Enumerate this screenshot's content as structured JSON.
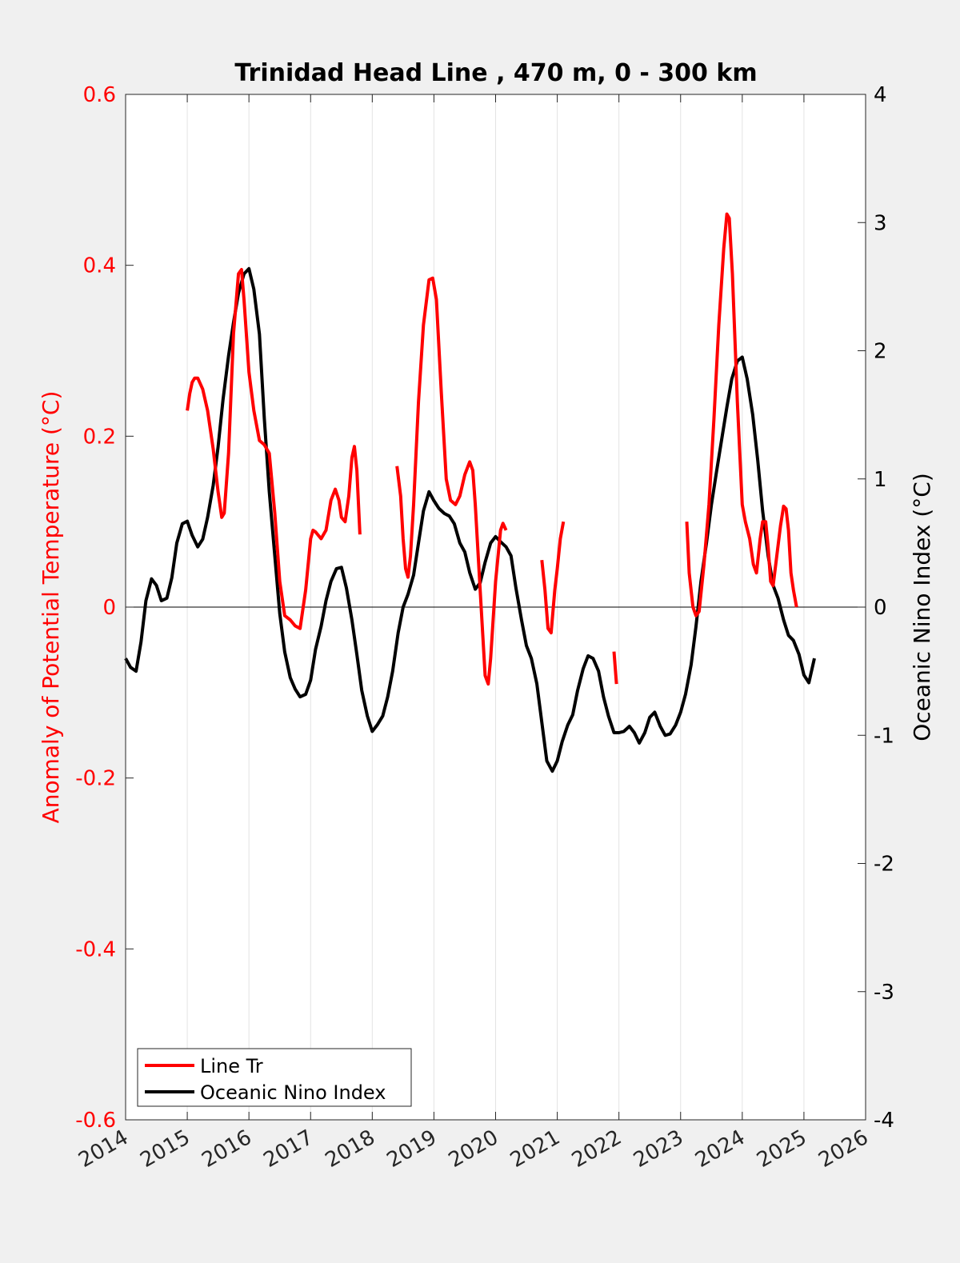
{
  "chart_data": {
    "type": "line",
    "title": "Trinidad Head Line , 470 m, 0 - 300 km",
    "xlabel": "",
    "ylabel_left": "Anomaly of Potential Temperature (°C)",
    "ylabel_right": "Oceanic Nino Index (°C)",
    "xlim": [
      2014,
      2026
    ],
    "ylim_left": [
      -0.6,
      0.6
    ],
    "ylim_right": [
      -4,
      4
    ],
    "x_ticks": [
      "2014",
      "2015",
      "2016",
      "2017",
      "2018",
      "2019",
      "2020",
      "2021",
      "2022",
      "2023",
      "2024",
      "2025",
      "2026"
    ],
    "y_left_ticks": [
      "-0.6",
      "-0.4",
      "-0.2",
      "0",
      "0.2",
      "0.4",
      "0.6"
    ],
    "y_right_ticks": [
      "-4",
      "-3",
      "-2",
      "-1",
      "0",
      "1",
      "2",
      "3",
      "4"
    ],
    "grid": "vertical",
    "zero_line": true,
    "legend_position": "bottom-left",
    "colors": {
      "line_tr": "#ff0000",
      "oni": "#000000",
      "left_axis": "#ff0000",
      "right_axis": "#000000"
    },
    "series": [
      {
        "name": "Line Tr",
        "axis": "left",
        "color": "#ff0000",
        "segments": [
          [
            [
              2015.0,
              0.23
            ],
            [
              2015.04,
              0.25
            ],
            [
              2015.08,
              0.263
            ],
            [
              2015.12,
              0.268
            ],
            [
              2015.17,
              0.268
            ],
            [
              2015.25,
              0.255
            ],
            [
              2015.33,
              0.23
            ],
            [
              2015.42,
              0.185
            ],
            [
              2015.5,
              0.135
            ],
            [
              2015.56,
              0.105
            ],
            [
              2015.6,
              0.11
            ],
            [
              2015.67,
              0.18
            ],
            [
              2015.75,
              0.32
            ],
            [
              2015.83,
              0.39
            ],
            [
              2015.88,
              0.395
            ],
            [
              2015.92,
              0.36
            ],
            [
              2016.0,
              0.275
            ],
            [
              2016.08,
              0.23
            ],
            [
              2016.17,
              0.195
            ],
            [
              2016.25,
              0.19
            ],
            [
              2016.33,
              0.18
            ],
            [
              2016.42,
              0.11
            ],
            [
              2016.5,
              0.03
            ],
            [
              2016.58,
              -0.01
            ],
            [
              2016.67,
              -0.015
            ],
            [
              2016.75,
              -0.022
            ],
            [
              2016.83,
              -0.025
            ],
            [
              2016.92,
              0.02
            ],
            [
              2017.0,
              0.08
            ],
            [
              2017.04,
              0.09
            ],
            [
              2017.08,
              0.088
            ],
            [
              2017.17,
              0.08
            ],
            [
              2017.25,
              0.09
            ],
            [
              2017.33,
              0.125
            ],
            [
              2017.4,
              0.138
            ],
            [
              2017.46,
              0.125
            ],
            [
              2017.5,
              0.105
            ],
            [
              2017.56,
              0.1
            ],
            [
              2017.62,
              0.13
            ],
            [
              2017.67,
              0.175
            ],
            [
              2017.71,
              0.188
            ],
            [
              2017.75,
              0.16
            ],
            [
              2017.8,
              0.085
            ]
          ],
          [
            [
              2018.4,
              0.165
            ],
            [
              2018.46,
              0.13
            ],
            [
              2018.5,
              0.08
            ],
            [
              2018.54,
              0.045
            ],
            [
              2018.58,
              0.035
            ],
            [
              2018.62,
              0.06
            ],
            [
              2018.67,
              0.12
            ],
            [
              2018.75,
              0.24
            ],
            [
              2018.83,
              0.33
            ],
            [
              2018.92,
              0.383
            ],
            [
              2018.98,
              0.385
            ],
            [
              2019.04,
              0.36
            ],
            [
              2019.12,
              0.25
            ],
            [
              2019.2,
              0.15
            ],
            [
              2019.27,
              0.125
            ],
            [
              2019.35,
              0.12
            ],
            [
              2019.42,
              0.13
            ],
            [
              2019.5,
              0.155
            ],
            [
              2019.58,
              0.17
            ],
            [
              2019.63,
              0.16
            ],
            [
              2019.67,
              0.12
            ],
            [
              2019.75,
              0.02
            ],
            [
              2019.83,
              -0.08
            ],
            [
              2019.88,
              -0.09
            ],
            [
              2019.92,
              -0.06
            ],
            [
              2020.0,
              0.03
            ],
            [
              2020.08,
              0.09
            ],
            [
              2020.12,
              0.098
            ],
            [
              2020.17,
              0.09
            ]
          ],
          [
            [
              2020.75,
              0.055
            ],
            [
              2020.8,
              0.02
            ],
            [
              2020.85,
              -0.025
            ],
            [
              2020.9,
              -0.03
            ],
            [
              2020.96,
              0.02
            ],
            [
              2021.0,
              0.045
            ],
            [
              2021.05,
              0.08
            ],
            [
              2021.1,
              0.1
            ]
          ],
          [
            [
              2021.92,
              -0.052
            ],
            [
              2021.96,
              -0.09
            ]
          ],
          [
            [
              2023.1,
              0.1
            ],
            [
              2023.14,
              0.04
            ],
            [
              2023.2,
              0.0
            ],
            [
              2023.25,
              -0.01
            ],
            [
              2023.3,
              -0.005
            ],
            [
              2023.38,
              0.05
            ],
            [
              2023.46,
              0.12
            ],
            [
              2023.54,
              0.22
            ],
            [
              2023.62,
              0.33
            ],
            [
              2023.7,
              0.42
            ],
            [
              2023.75,
              0.46
            ],
            [
              2023.79,
              0.455
            ],
            [
              2023.84,
              0.39
            ],
            [
              2023.92,
              0.24
            ],
            [
              2024.0,
              0.12
            ],
            [
              2024.05,
              0.1
            ],
            [
              2024.12,
              0.08
            ],
            [
              2024.18,
              0.05
            ],
            [
              2024.23,
              0.04
            ],
            [
              2024.29,
              0.08
            ],
            [
              2024.33,
              0.1
            ],
            [
              2024.38,
              0.1
            ],
            [
              2024.42,
              0.07
            ],
            [
              2024.46,
              0.03
            ],
            [
              2024.5,
              0.025
            ],
            [
              2024.56,
              0.06
            ],
            [
              2024.62,
              0.095
            ],
            [
              2024.67,
              0.118
            ],
            [
              2024.71,
              0.115
            ],
            [
              2024.75,
              0.09
            ],
            [
              2024.79,
              0.04
            ],
            [
              2024.83,
              0.02
            ],
            [
              2024.88,
              0.0
            ]
          ]
        ]
      },
      {
        "name": "Oceanic Nino Index",
        "axis": "right",
        "color": "#000000",
        "segments": [
          [
            [
              2014.0,
              -0.4
            ],
            [
              2014.08,
              -0.47
            ],
            [
              2014.17,
              -0.5
            ],
            [
              2014.25,
              -0.27
            ],
            [
              2014.33,
              0.05
            ],
            [
              2014.42,
              0.22
            ],
            [
              2014.5,
              0.17
            ],
            [
              2014.58,
              0.05
            ],
            [
              2014.67,
              0.07
            ],
            [
              2014.75,
              0.23
            ],
            [
              2014.83,
              0.5
            ],
            [
              2014.92,
              0.65
            ],
            [
              2015.0,
              0.67
            ],
            [
              2015.08,
              0.56
            ],
            [
              2015.17,
              0.47
            ],
            [
              2015.25,
              0.53
            ],
            [
              2015.33,
              0.7
            ],
            [
              2015.42,
              0.95
            ],
            [
              2015.5,
              1.25
            ],
            [
              2015.58,
              1.62
            ],
            [
              2015.67,
              1.96
            ],
            [
              2015.75,
              2.22
            ],
            [
              2015.83,
              2.45
            ],
            [
              2015.92,
              2.6
            ],
            [
              2016.0,
              2.64
            ],
            [
              2016.08,
              2.48
            ],
            [
              2016.17,
              2.13
            ],
            [
              2016.25,
              1.47
            ],
            [
              2016.33,
              0.9
            ],
            [
              2016.42,
              0.4
            ],
            [
              2016.5,
              -0.05
            ],
            [
              2016.58,
              -0.35
            ],
            [
              2016.67,
              -0.55
            ],
            [
              2016.75,
              -0.64
            ],
            [
              2016.83,
              -0.7
            ],
            [
              2016.92,
              -0.68
            ],
            [
              2017.0,
              -0.57
            ],
            [
              2017.08,
              -0.33
            ],
            [
              2017.17,
              -0.15
            ],
            [
              2017.25,
              0.05
            ],
            [
              2017.33,
              0.2
            ],
            [
              2017.42,
              0.3
            ],
            [
              2017.5,
              0.31
            ],
            [
              2017.58,
              0.15
            ],
            [
              2017.67,
              -0.1
            ],
            [
              2017.75,
              -0.37
            ],
            [
              2017.83,
              -0.65
            ],
            [
              2017.92,
              -0.85
            ],
            [
              2018.0,
              -0.97
            ],
            [
              2018.08,
              -0.92
            ],
            [
              2018.17,
              -0.85
            ],
            [
              2018.25,
              -0.7
            ],
            [
              2018.33,
              -0.5
            ],
            [
              2018.42,
              -0.2
            ],
            [
              2018.5,
              0.0
            ],
            [
              2018.58,
              0.1
            ],
            [
              2018.67,
              0.25
            ],
            [
              2018.75,
              0.5
            ],
            [
              2018.83,
              0.75
            ],
            [
              2018.92,
              0.9
            ],
            [
              2019.0,
              0.83
            ],
            [
              2019.08,
              0.77
            ],
            [
              2019.17,
              0.73
            ],
            [
              2019.25,
              0.71
            ],
            [
              2019.33,
              0.65
            ],
            [
              2019.42,
              0.5
            ],
            [
              2019.5,
              0.43
            ],
            [
              2019.58,
              0.27
            ],
            [
              2019.67,
              0.14
            ],
            [
              2019.75,
              0.19
            ],
            [
              2019.83,
              0.35
            ],
            [
              2019.92,
              0.5
            ],
            [
              2020.0,
              0.55
            ],
            [
              2020.08,
              0.51
            ],
            [
              2020.17,
              0.47
            ],
            [
              2020.25,
              0.4
            ],
            [
              2020.33,
              0.15
            ],
            [
              2020.42,
              -0.1
            ],
            [
              2020.5,
              -0.3
            ],
            [
              2020.58,
              -0.4
            ],
            [
              2020.67,
              -0.6
            ],
            [
              2020.75,
              -0.9
            ],
            [
              2020.83,
              -1.2
            ],
            [
              2020.92,
              -1.28
            ],
            [
              2021.0,
              -1.2
            ],
            [
              2021.08,
              -1.05
            ],
            [
              2021.17,
              -0.92
            ],
            [
              2021.25,
              -0.84
            ],
            [
              2021.33,
              -0.65
            ],
            [
              2021.42,
              -0.48
            ],
            [
              2021.5,
              -0.38
            ],
            [
              2021.58,
              -0.4
            ],
            [
              2021.67,
              -0.5
            ],
            [
              2021.75,
              -0.7
            ],
            [
              2021.83,
              -0.85
            ],
            [
              2021.92,
              -0.98
            ],
            [
              2022.0,
              -0.98
            ],
            [
              2022.08,
              -0.97
            ],
            [
              2022.17,
              -0.93
            ],
            [
              2022.25,
              -0.98
            ],
            [
              2022.33,
              -1.06
            ],
            [
              2022.42,
              -0.98
            ],
            [
              2022.5,
              -0.86
            ],
            [
              2022.58,
              -0.82
            ],
            [
              2022.67,
              -0.93
            ],
            [
              2022.75,
              -1.0
            ],
            [
              2022.83,
              -0.99
            ],
            [
              2022.92,
              -0.92
            ],
            [
              2023.0,
              -0.82
            ],
            [
              2023.08,
              -0.68
            ],
            [
              2023.17,
              -0.45
            ],
            [
              2023.25,
              -0.15
            ],
            [
              2023.33,
              0.2
            ],
            [
              2023.42,
              0.5
            ],
            [
              2023.5,
              0.8
            ],
            [
              2023.58,
              1.05
            ],
            [
              2023.67,
              1.32
            ],
            [
              2023.75,
              1.56
            ],
            [
              2023.83,
              1.78
            ],
            [
              2023.92,
              1.92
            ],
            [
              2024.0,
              1.95
            ],
            [
              2024.08,
              1.78
            ],
            [
              2024.17,
              1.5
            ],
            [
              2024.25,
              1.15
            ],
            [
              2024.33,
              0.75
            ],
            [
              2024.42,
              0.4
            ],
            [
              2024.5,
              0.17
            ],
            [
              2024.58,
              0.07
            ],
            [
              2024.67,
              -0.1
            ],
            [
              2024.75,
              -0.22
            ],
            [
              2024.83,
              -0.26
            ],
            [
              2024.92,
              -0.37
            ],
            [
              2025.0,
              -0.53
            ],
            [
              2025.08,
              -0.59
            ],
            [
              2025.17,
              -0.4
            ]
          ]
        ]
      }
    ]
  },
  "legend": {
    "items": [
      {
        "label": "Line Tr",
        "color": "#ff0000"
      },
      {
        "label": "Oceanic Nino Index",
        "color": "#000000"
      }
    ]
  }
}
